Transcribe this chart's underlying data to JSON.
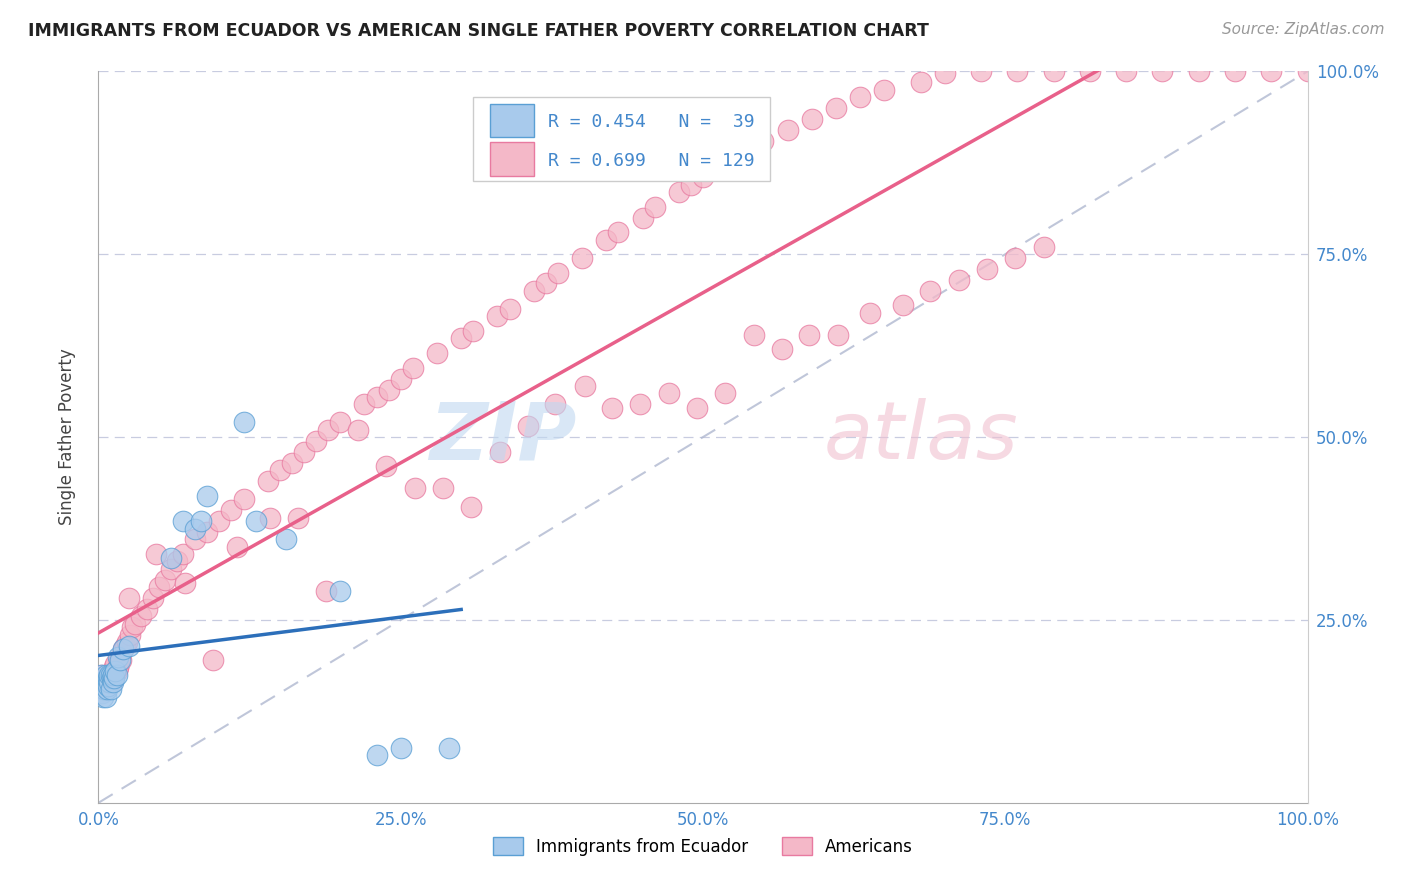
{
  "title": "IMMIGRANTS FROM ECUADOR VS AMERICAN SINGLE FATHER POVERTY CORRELATION CHART",
  "source": "Source: ZipAtlas.com",
  "ylabel": "Single Father Poverty",
  "legend_entry1": "R = 0.454   N =  39",
  "legend_entry2": "R = 0.699   N = 129",
  "legend_label1": "Immigrants from Ecuador",
  "legend_label2": "Americans",
  "R1": 0.454,
  "N1": 39,
  "R2": 0.699,
  "N2": 129,
  "color_blue_fill": "#a8caec",
  "color_blue_edge": "#5a9fd4",
  "color_pink_fill": "#f4b8c8",
  "color_pink_edge": "#e87aa0",
  "color_blue_line": "#2c6fba",
  "color_pink_line": "#e8608a",
  "color_dashed": "#b0b8d0",
  "background": "#ffffff",
  "grid_color": "#c8cce0",
  "tick_color": "#4488cc",
  "title_color": "#222222",
  "source_color": "#999999",
  "ylabel_color": "#444444",
  "blue_x": [
    0.002,
    0.003,
    0.003,
    0.004,
    0.004,
    0.005,
    0.005,
    0.006,
    0.006,
    0.007,
    0.007,
    0.008,
    0.008,
    0.009,
    0.009,
    0.01,
    0.01,
    0.011,
    0.012,
    0.012,
    0.013,
    0.014,
    0.015,
    0.016,
    0.018,
    0.02,
    0.025,
    0.06,
    0.07,
    0.08,
    0.085,
    0.09,
    0.12,
    0.13,
    0.155,
    0.2,
    0.23,
    0.25,
    0.29
  ],
  "blue_y": [
    0.175,
    0.165,
    0.15,
    0.16,
    0.145,
    0.155,
    0.165,
    0.145,
    0.175,
    0.155,
    0.165,
    0.16,
    0.17,
    0.165,
    0.175,
    0.155,
    0.175,
    0.17,
    0.165,
    0.175,
    0.17,
    0.18,
    0.175,
    0.2,
    0.195,
    0.21,
    0.215,
    0.335,
    0.385,
    0.375,
    0.385,
    0.42,
    0.52,
    0.385,
    0.36,
    0.29,
    0.065,
    0.075,
    0.075
  ],
  "pink_x": [
    0.003,
    0.003,
    0.004,
    0.005,
    0.005,
    0.006,
    0.006,
    0.007,
    0.007,
    0.008,
    0.008,
    0.009,
    0.009,
    0.01,
    0.01,
    0.011,
    0.011,
    0.012,
    0.012,
    0.013,
    0.013,
    0.014,
    0.014,
    0.015,
    0.016,
    0.016,
    0.017,
    0.018,
    0.019,
    0.02,
    0.022,
    0.024,
    0.026,
    0.028,
    0.03,
    0.035,
    0.04,
    0.045,
    0.05,
    0.055,
    0.06,
    0.065,
    0.07,
    0.08,
    0.09,
    0.1,
    0.11,
    0.12,
    0.14,
    0.15,
    0.16,
    0.17,
    0.18,
    0.19,
    0.2,
    0.22,
    0.23,
    0.24,
    0.25,
    0.26,
    0.28,
    0.3,
    0.31,
    0.33,
    0.34,
    0.36,
    0.37,
    0.38,
    0.4,
    0.42,
    0.43,
    0.45,
    0.46,
    0.48,
    0.49,
    0.5,
    0.52,
    0.54,
    0.55,
    0.57,
    0.59,
    0.61,
    0.63,
    0.65,
    0.68,
    0.7,
    0.73,
    0.76,
    0.79,
    0.82,
    0.85,
    0.88,
    0.91,
    0.94,
    0.97,
    1.0,
    0.025,
    0.048,
    0.072,
    0.095,
    0.115,
    0.142,
    0.165,
    0.188,
    0.215,
    0.238,
    0.262,
    0.285,
    0.308,
    0.332,
    0.355,
    0.378,
    0.402,
    0.425,
    0.448,
    0.472,
    0.495,
    0.518,
    0.542,
    0.565,
    0.588,
    0.612,
    0.638,
    0.665,
    0.688,
    0.712,
    0.735,
    0.758,
    0.782
  ],
  "pink_y": [
    0.175,
    0.155,
    0.16,
    0.17,
    0.155,
    0.165,
    0.165,
    0.17,
    0.16,
    0.175,
    0.165,
    0.175,
    0.165,
    0.165,
    0.175,
    0.175,
    0.165,
    0.175,
    0.18,
    0.175,
    0.185,
    0.18,
    0.19,
    0.18,
    0.185,
    0.185,
    0.195,
    0.2,
    0.195,
    0.21,
    0.215,
    0.22,
    0.23,
    0.24,
    0.245,
    0.255,
    0.265,
    0.28,
    0.295,
    0.305,
    0.32,
    0.33,
    0.34,
    0.36,
    0.37,
    0.385,
    0.4,
    0.415,
    0.44,
    0.455,
    0.465,
    0.48,
    0.495,
    0.51,
    0.52,
    0.545,
    0.555,
    0.565,
    0.58,
    0.595,
    0.615,
    0.635,
    0.645,
    0.665,
    0.675,
    0.7,
    0.71,
    0.725,
    0.745,
    0.77,
    0.78,
    0.8,
    0.815,
    0.835,
    0.845,
    0.855,
    0.875,
    0.89,
    0.905,
    0.92,
    0.935,
    0.95,
    0.965,
    0.975,
    0.985,
    0.998,
    1.0,
    1.0,
    1.0,
    1.0,
    1.0,
    1.0,
    1.0,
    1.0,
    1.0,
    1.0,
    0.28,
    0.34,
    0.3,
    0.195,
    0.35,
    0.39,
    0.39,
    0.29,
    0.51,
    0.46,
    0.43,
    0.43,
    0.405,
    0.48,
    0.515,
    0.545,
    0.57,
    0.54,
    0.545,
    0.56,
    0.54,
    0.56,
    0.64,
    0.62,
    0.64,
    0.64,
    0.67,
    0.68,
    0.7,
    0.715,
    0.73,
    0.745,
    0.76
  ]
}
